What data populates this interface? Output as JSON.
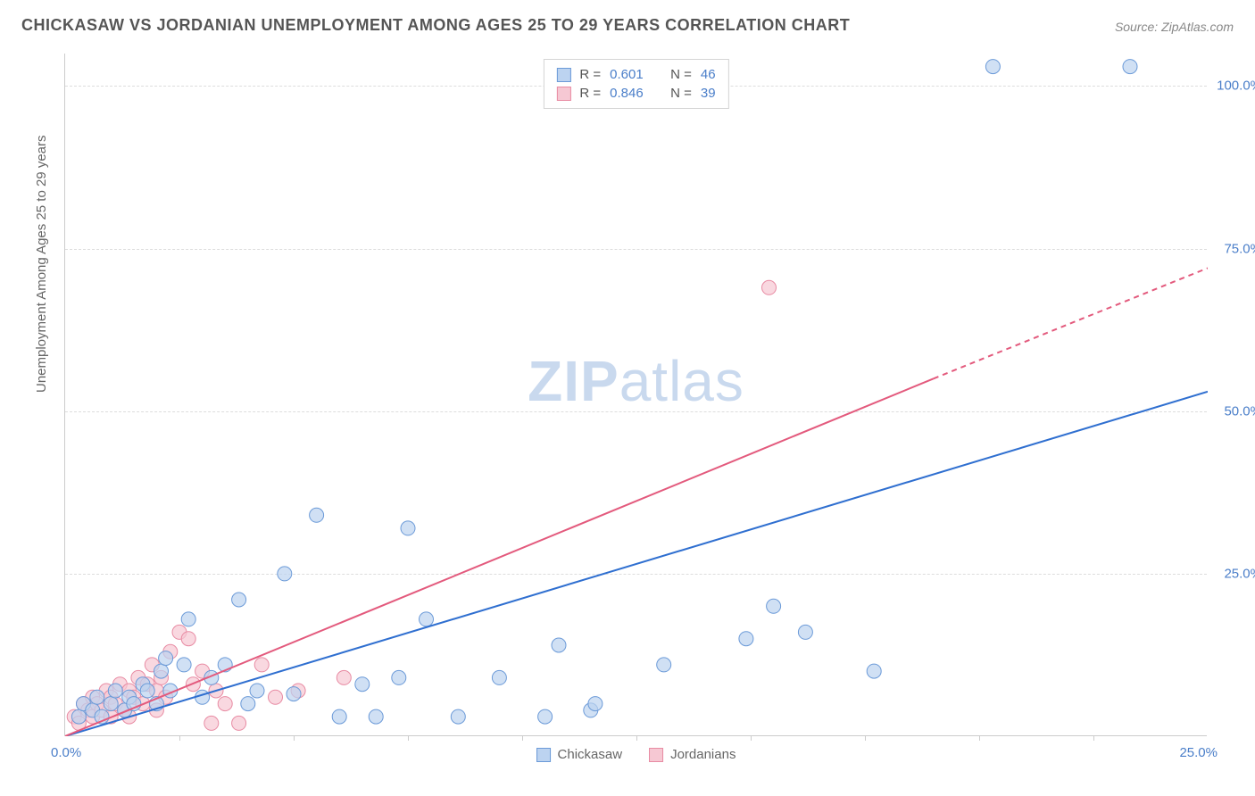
{
  "title": "CHICKASAW VS JORDANIAN UNEMPLOYMENT AMONG AGES 25 TO 29 YEARS CORRELATION CHART",
  "source": "Source: ZipAtlas.com",
  "y_axis_title": "Unemployment Among Ages 25 to 29 years",
  "watermark_strong": "ZIP",
  "watermark_light": "atlas",
  "chart": {
    "type": "scatter",
    "background_color": "#ffffff",
    "grid_color": "#dddddd",
    "border_color": "#cccccc",
    "xlim": [
      0,
      25
    ],
    "ylim": [
      0,
      105
    ],
    "xtick_step": 2.5,
    "ytick_labels": [
      "25.0%",
      "50.0%",
      "75.0%",
      "100.0%"
    ],
    "ytick_values": [
      25,
      50,
      75,
      100
    ],
    "x_origin_label": "0.0%",
    "x_max_label": "25.0%",
    "series": [
      {
        "name": "Chickasaw",
        "color_fill": "#bcd3f0",
        "color_stroke": "#6b9ad8",
        "marker_radius": 8,
        "marker_opacity": 0.7,
        "R_label": "R  =",
        "R": "0.601",
        "N_label": "N  =",
        "N": "46",
        "trend": {
          "x1": 0,
          "y1": 0,
          "x2": 25,
          "y2": 53,
          "color": "#2f6fd0",
          "width": 2
        },
        "points": [
          [
            0.3,
            3
          ],
          [
            0.4,
            5
          ],
          [
            0.6,
            4
          ],
          [
            0.7,
            6
          ],
          [
            0.8,
            3
          ],
          [
            1.0,
            5
          ],
          [
            1.1,
            7
          ],
          [
            1.3,
            4
          ],
          [
            1.4,
            6
          ],
          [
            1.5,
            5
          ],
          [
            1.7,
            8
          ],
          [
            1.8,
            7
          ],
          [
            2.0,
            5
          ],
          [
            2.1,
            10
          ],
          [
            2.2,
            12
          ],
          [
            2.3,
            7
          ],
          [
            2.7,
            18
          ],
          [
            2.6,
            11
          ],
          [
            3.0,
            6
          ],
          [
            3.2,
            9
          ],
          [
            3.5,
            11
          ],
          [
            3.8,
            21
          ],
          [
            4.0,
            5
          ],
          [
            4.2,
            7
          ],
          [
            4.8,
            25
          ],
          [
            5.0,
            6.5
          ],
          [
            5.5,
            34
          ],
          [
            6.0,
            3
          ],
          [
            6.5,
            8
          ],
          [
            6.8,
            3
          ],
          [
            7.3,
            9
          ],
          [
            7.5,
            32
          ],
          [
            7.9,
            18
          ],
          [
            8.6,
            3
          ],
          [
            9.5,
            9
          ],
          [
            10.5,
            3
          ],
          [
            10.8,
            14
          ],
          [
            11.5,
            4
          ],
          [
            11.6,
            5
          ],
          [
            13.1,
            11
          ],
          [
            14.9,
            15
          ],
          [
            15.5,
            20
          ],
          [
            16.2,
            16
          ],
          [
            17.7,
            10
          ],
          [
            20.3,
            103
          ],
          [
            23.3,
            103
          ]
        ]
      },
      {
        "name": "Jordanians",
        "color_fill": "#f6c8d3",
        "color_stroke": "#e88ba3",
        "marker_radius": 8,
        "marker_opacity": 0.7,
        "R_label": "R  =",
        "R": "0.846",
        "N_label": "N  =",
        "N": "39",
        "trend": {
          "x1": 0,
          "y1": 0,
          "x2_solid": 19,
          "y2_solid": 55,
          "x2": 25,
          "y2": 72,
          "color": "#e35a7d",
          "width": 2
        },
        "points": [
          [
            0.2,
            3
          ],
          [
            0.3,
            2
          ],
          [
            0.4,
            5
          ],
          [
            0.5,
            4
          ],
          [
            0.6,
            6
          ],
          [
            0.6,
            3
          ],
          [
            0.7,
            5
          ],
          [
            0.8,
            4
          ],
          [
            0.9,
            7
          ],
          [
            1.0,
            3
          ],
          [
            1.0,
            6
          ],
          [
            1.1,
            5
          ],
          [
            1.2,
            8
          ],
          [
            1.3,
            4
          ],
          [
            1.4,
            7
          ],
          [
            1.4,
            3
          ],
          [
            1.5,
            6
          ],
          [
            1.6,
            9
          ],
          [
            1.7,
            5
          ],
          [
            1.8,
            8
          ],
          [
            1.9,
            11
          ],
          [
            2.0,
            7
          ],
          [
            2.0,
            4
          ],
          [
            2.1,
            9
          ],
          [
            2.2,
            6
          ],
          [
            2.3,
            13
          ],
          [
            2.5,
            16
          ],
          [
            2.7,
            15
          ],
          [
            2.8,
            8
          ],
          [
            3.0,
            10
          ],
          [
            3.2,
            2
          ],
          [
            3.3,
            7
          ],
          [
            3.5,
            5
          ],
          [
            3.8,
            2
          ],
          [
            4.3,
            11
          ],
          [
            4.6,
            6
          ],
          [
            5.1,
            7
          ],
          [
            6.1,
            9
          ],
          [
            15.4,
            69
          ]
        ]
      }
    ]
  }
}
